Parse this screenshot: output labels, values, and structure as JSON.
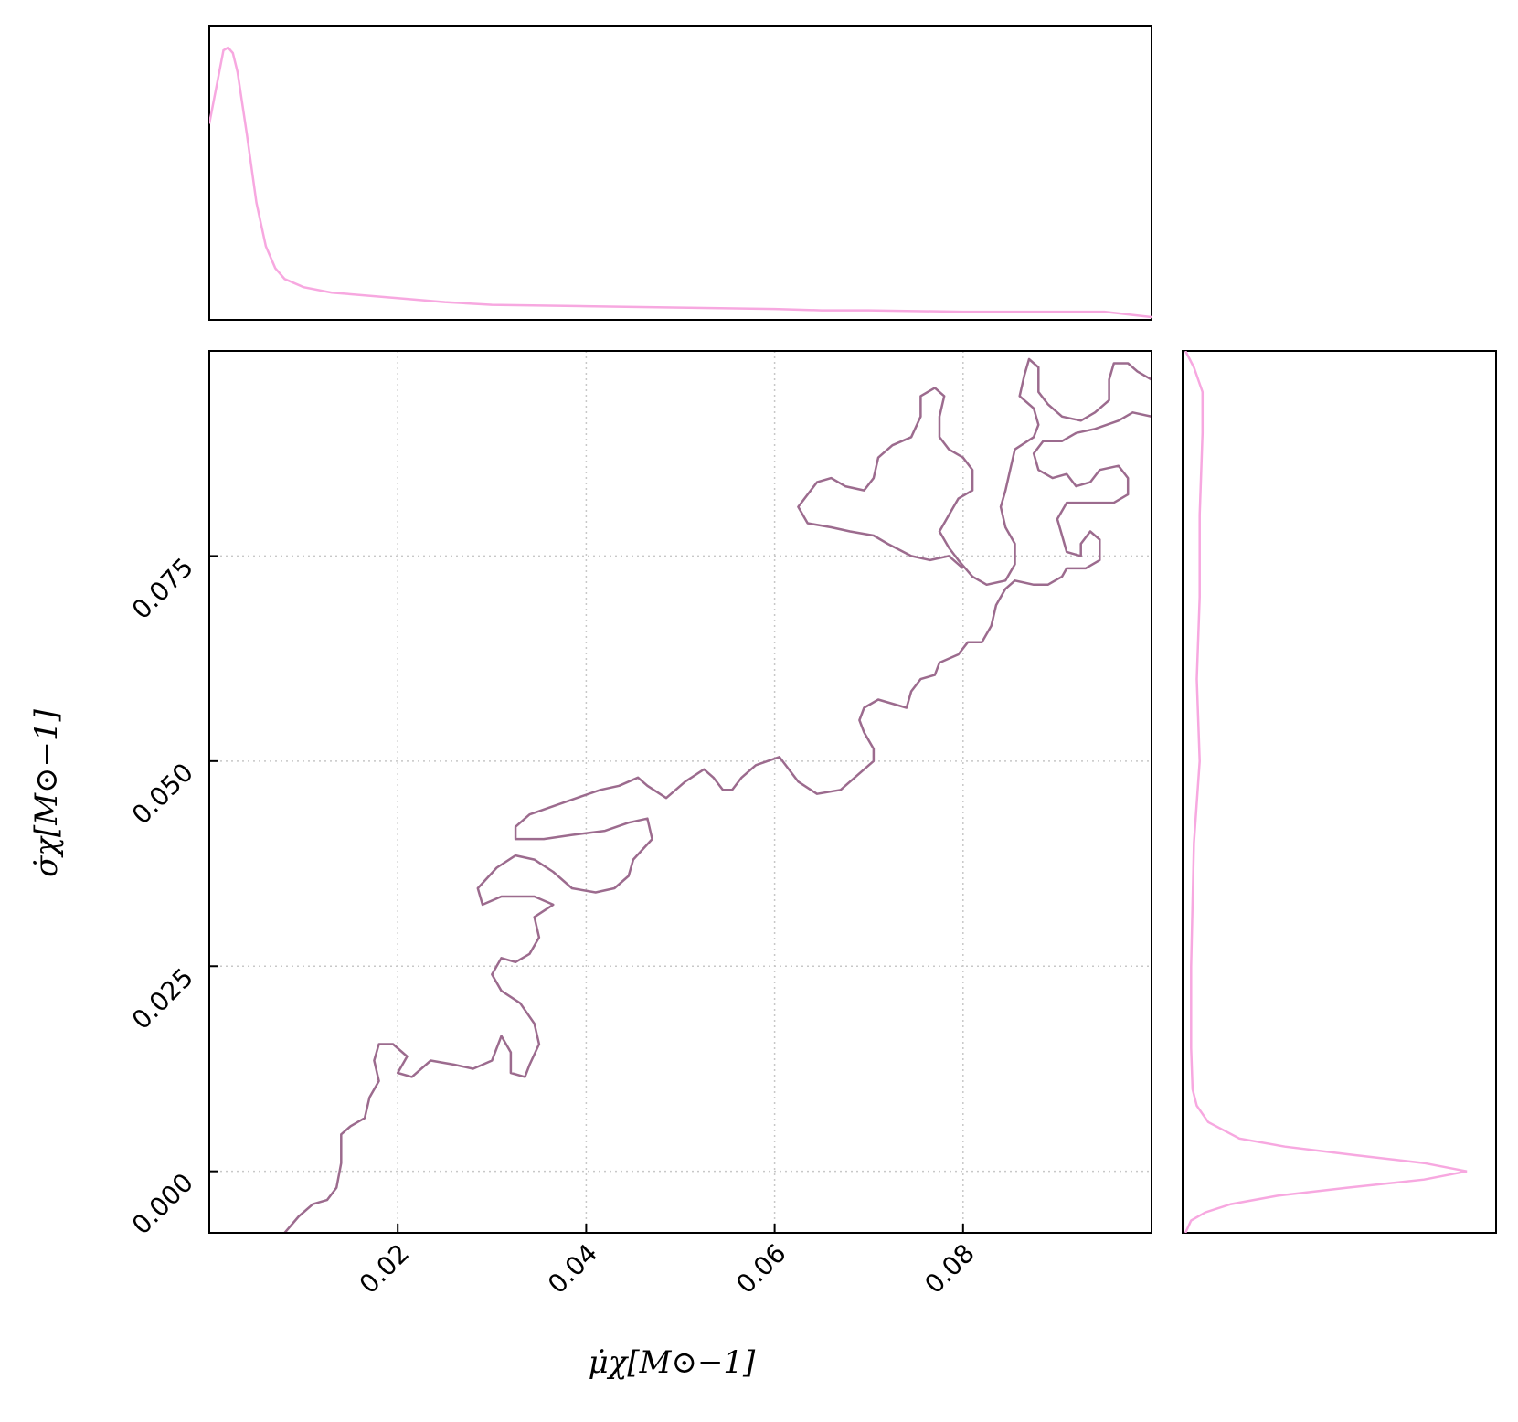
{
  "chart_data": {
    "type": "contour",
    "title": "",
    "xlabel": "μ̇χ[M⊙−1]",
    "ylabel": "σ̇χ[M⊙−1]",
    "xlim": [
      0.0,
      0.1
    ],
    "ylim": [
      -0.0075,
      0.1
    ],
    "x_ticks": [
      {
        "value": 0.02,
        "label": "0.02"
      },
      {
        "value": 0.04,
        "label": "0.04"
      },
      {
        "value": 0.06,
        "label": "0.06"
      },
      {
        "value": 0.08,
        "label": "0.08"
      }
    ],
    "y_ticks": [
      {
        "value": 0.0,
        "label": "0.000"
      },
      {
        "value": 0.025,
        "label": "0.025"
      },
      {
        "value": 0.05,
        "label": "0.050"
      },
      {
        "value": 0.075,
        "label": "0.075"
      }
    ],
    "grid": true,
    "colors": {
      "contour": "#9c6b8e",
      "marginal": "#f7a8e0",
      "grid": "#c8c8c8"
    },
    "marginal_x": {
      "x": [
        0.0,
        0.0015,
        0.002,
        0.0025,
        0.003,
        0.004,
        0.005,
        0.006,
        0.007,
        0.008,
        0.01,
        0.013,
        0.02,
        0.025,
        0.03,
        0.04,
        0.05,
        0.06,
        0.065,
        0.07,
        0.08,
        0.09,
        0.095,
        0.1
      ],
      "density": [
        0.72,
        0.99,
        1.0,
        0.98,
        0.91,
        0.68,
        0.43,
        0.27,
        0.19,
        0.15,
        0.12,
        0.1,
        0.08,
        0.065,
        0.055,
        0.05,
        0.045,
        0.04,
        0.035,
        0.035,
        0.03,
        0.03,
        0.03,
        0.01
      ]
    },
    "marginal_y": {
      "y": [
        -0.0075,
        -0.006,
        -0.005,
        -0.004,
        -0.003,
        -0.002,
        -0.001,
        0.0,
        0.001,
        0.002,
        0.003,
        0.004,
        0.006,
        0.008,
        0.01,
        0.015,
        0.025,
        0.04,
        0.05,
        0.06,
        0.07,
        0.08,
        0.09,
        0.095,
        0.098,
        0.1
      ],
      "density": [
        0.01,
        0.03,
        0.08,
        0.17,
        0.33,
        0.58,
        0.85,
        1.0,
        0.85,
        0.6,
        0.36,
        0.2,
        0.09,
        0.05,
        0.035,
        0.03,
        0.03,
        0.04,
        0.06,
        0.05,
        0.06,
        0.06,
        0.07,
        0.07,
        0.04,
        0.01
      ]
    },
    "contours": [
      [
        [
          0.008,
          -0.0075
        ],
        [
          0.0095,
          -0.0055
        ],
        [
          0.011,
          -0.004
        ],
        [
          0.0125,
          -0.0035
        ],
        [
          0.0135,
          -0.002
        ],
        [
          0.014,
          0.001
        ],
        [
          0.014,
          0.0045
        ],
        [
          0.015,
          0.0055
        ],
        [
          0.0165,
          0.0065
        ],
        [
          0.017,
          0.009
        ],
        [
          0.018,
          0.011
        ],
        [
          0.0175,
          0.0135
        ],
        [
          0.018,
          0.0155
        ],
        [
          0.0195,
          0.0155
        ],
        [
          0.021,
          0.014
        ],
        [
          0.02,
          0.012
        ],
        [
          0.0215,
          0.0115
        ],
        [
          0.0235,
          0.0135
        ],
        [
          0.026,
          0.013
        ],
        [
          0.028,
          0.0125
        ],
        [
          0.03,
          0.0135
        ],
        [
          0.031,
          0.0165
        ],
        [
          0.032,
          0.0145
        ],
        [
          0.032,
          0.012
        ],
        [
          0.0335,
          0.0115
        ],
        [
          0.034,
          0.013
        ],
        [
          0.035,
          0.0155
        ],
        [
          0.0345,
          0.018
        ],
        [
          0.033,
          0.0205
        ],
        [
          0.031,
          0.022
        ],
        [
          0.03,
          0.024
        ],
        [
          0.031,
          0.026
        ],
        [
          0.0325,
          0.0255
        ],
        [
          0.034,
          0.0265
        ],
        [
          0.035,
          0.0285
        ],
        [
          0.0345,
          0.031
        ],
        [
          0.0365,
          0.0325
        ],
        [
          0.0345,
          0.0335
        ],
        [
          0.031,
          0.0335
        ],
        [
          0.029,
          0.0325
        ],
        [
          0.0285,
          0.0345
        ],
        [
          0.0305,
          0.037
        ],
        [
          0.0325,
          0.0385
        ],
        [
          0.0345,
          0.038
        ],
        [
          0.0365,
          0.0365
        ],
        [
          0.0385,
          0.0345
        ],
        [
          0.041,
          0.034
        ],
        [
          0.043,
          0.0345
        ],
        [
          0.0445,
          0.036
        ],
        [
          0.045,
          0.038
        ],
        [
          0.047,
          0.0405
        ],
        [
          0.0465,
          0.043
        ],
        [
          0.0445,
          0.0425
        ],
        [
          0.042,
          0.0415
        ],
        [
          0.0385,
          0.041
        ],
        [
          0.0355,
          0.0405
        ],
        [
          0.0325,
          0.0405
        ],
        [
          0.0325,
          0.042
        ],
        [
          0.034,
          0.0435
        ],
        [
          0.0365,
          0.0445
        ],
        [
          0.039,
          0.0455
        ],
        [
          0.0415,
          0.0465
        ],
        [
          0.0435,
          0.047
        ],
        [
          0.0455,
          0.048
        ],
        [
          0.0465,
          0.047
        ],
        [
          0.0485,
          0.0455
        ],
        [
          0.0505,
          0.0475
        ],
        [
          0.0525,
          0.049
        ],
        [
          0.0535,
          0.048
        ],
        [
          0.0545,
          0.0465
        ],
        [
          0.0555,
          0.0465
        ],
        [
          0.0565,
          0.048
        ],
        [
          0.058,
          0.0495
        ],
        [
          0.0605,
          0.0505
        ],
        [
          0.0615,
          0.049
        ],
        [
          0.0625,
          0.0475
        ],
        [
          0.0645,
          0.046
        ],
        [
          0.067,
          0.0465
        ],
        [
          0.069,
          0.0485
        ],
        [
          0.0705,
          0.05
        ],
        [
          0.0705,
          0.0515
        ],
        [
          0.0695,
          0.0535
        ],
        [
          0.069,
          0.055
        ],
        [
          0.0695,
          0.0565
        ],
        [
          0.071,
          0.0575
        ],
        [
          0.0725,
          0.057
        ],
        [
          0.074,
          0.0565
        ],
        [
          0.0745,
          0.0585
        ],
        [
          0.0755,
          0.06
        ],
        [
          0.077,
          0.0605
        ],
        [
          0.0775,
          0.062
        ],
        [
          0.0795,
          0.063
        ],
        [
          0.0805,
          0.0645
        ],
        [
          0.082,
          0.0645
        ],
        [
          0.083,
          0.0665
        ],
        [
          0.0835,
          0.069
        ],
        [
          0.0845,
          0.071
        ],
        [
          0.0855,
          0.072
        ],
        [
          0.0875,
          0.0715
        ],
        [
          0.089,
          0.0715
        ],
        [
          0.0905,
          0.0725
        ],
        [
          0.091,
          0.0735
        ],
        [
          0.093,
          0.0735
        ],
        [
          0.0945,
          0.0745
        ],
        [
          0.0945,
          0.077
        ],
        [
          0.0935,
          0.078
        ],
        [
          0.0925,
          0.0765
        ],
        [
          0.0925,
          0.075
        ],
        [
          0.091,
          0.0755
        ],
        [
          0.0905,
          0.0775
        ],
        [
          0.09,
          0.0795
        ],
        [
          0.091,
          0.0815
        ],
        [
          0.0935,
          0.0815
        ],
        [
          0.096,
          0.0815
        ],
        [
          0.0975,
          0.0825
        ],
        [
          0.0975,
          0.0845
        ],
        [
          0.0965,
          0.086
        ],
        [
          0.0945,
          0.0855
        ],
        [
          0.0935,
          0.084
        ],
        [
          0.092,
          0.0835
        ],
        [
          0.091,
          0.085
        ],
        [
          0.0895,
          0.0845
        ],
        [
          0.088,
          0.0855
        ],
        [
          0.0875,
          0.0875
        ],
        [
          0.0885,
          0.089
        ],
        [
          0.0905,
          0.089
        ],
        [
          0.092,
          0.09
        ],
        [
          0.094,
          0.0905
        ],
        [
          0.0965,
          0.0915
        ],
        [
          0.098,
          0.0925
        ],
        [
          0.1,
          0.092
        ]
      ],
      [
        [
          0.1,
          0.0965
        ],
        [
          0.0985,
          0.0975
        ],
        [
          0.0975,
          0.0985
        ],
        [
          0.096,
          0.0985
        ],
        [
          0.0955,
          0.0965
        ],
        [
          0.0955,
          0.094
        ],
        [
          0.094,
          0.0925
        ],
        [
          0.0925,
          0.0915
        ],
        [
          0.0905,
          0.092
        ],
        [
          0.089,
          0.0935
        ],
        [
          0.088,
          0.095
        ],
        [
          0.088,
          0.098
        ],
        [
          0.087,
          0.099
        ],
        [
          0.0865,
          0.097
        ],
        [
          0.086,
          0.0945
        ],
        [
          0.0875,
          0.093
        ],
        [
          0.088,
          0.091
        ],
        [
          0.0875,
          0.0895
        ],
        [
          0.0855,
          0.088
        ],
        [
          0.085,
          0.0855
        ],
        [
          0.0845,
          0.083
        ],
        [
          0.084,
          0.081
        ],
        [
          0.0845,
          0.0785
        ],
        [
          0.0855,
          0.0765
        ],
        [
          0.0855,
          0.074
        ],
        [
          0.0845,
          0.072
        ],
        [
          0.0825,
          0.0715
        ],
        [
          0.081,
          0.0725
        ],
        [
          0.0795,
          0.0745
        ],
        [
          0.0785,
          0.076
        ],
        [
          0.0775,
          0.078
        ],
        [
          0.0785,
          0.08
        ],
        [
          0.0795,
          0.082
        ],
        [
          0.081,
          0.083
        ],
        [
          0.081,
          0.0855
        ],
        [
          0.08,
          0.087
        ],
        [
          0.0785,
          0.088
        ],
        [
          0.0775,
          0.0895
        ],
        [
          0.0775,
          0.092
        ],
        [
          0.078,
          0.0945
        ],
        [
          0.077,
          0.0955
        ],
        [
          0.0755,
          0.0945
        ],
        [
          0.0755,
          0.092
        ],
        [
          0.0745,
          0.0895
        ],
        [
          0.0725,
          0.0885
        ],
        [
          0.071,
          0.087
        ],
        [
          0.0705,
          0.0845
        ],
        [
          0.0695,
          0.083
        ],
        [
          0.0675,
          0.0835
        ],
        [
          0.066,
          0.0845
        ],
        [
          0.0645,
          0.084
        ],
        [
          0.0635,
          0.0825
        ],
        [
          0.0625,
          0.081
        ],
        [
          0.0635,
          0.079
        ],
        [
          0.066,
          0.0785
        ],
        [
          0.068,
          0.078
        ],
        [
          0.0705,
          0.0775
        ],
        [
          0.072,
          0.0765
        ],
        [
          0.0745,
          0.075
        ],
        [
          0.0765,
          0.0745
        ],
        [
          0.0785,
          0.075
        ],
        [
          0.08,
          0.0735
        ]
      ]
    ]
  }
}
